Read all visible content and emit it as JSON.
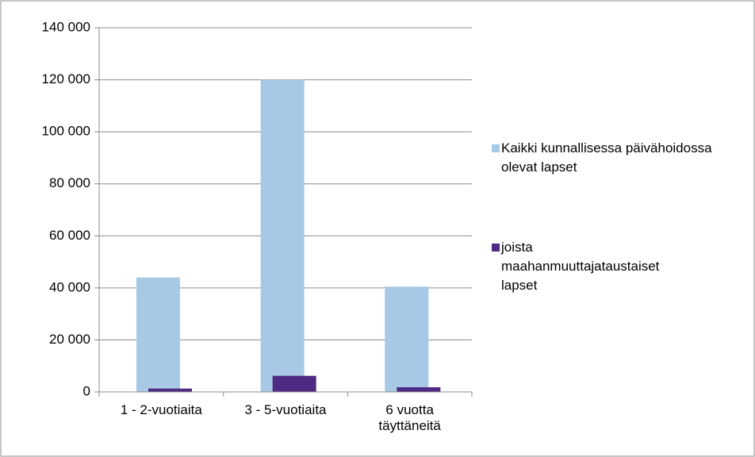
{
  "chart_data": {
    "type": "bar",
    "categories": [
      "1 - 2-vuotiaita",
      "3 - 5-vuotiaita",
      "6 vuotta täyttäneitä"
    ],
    "series": [
      {
        "name": "Kaikki kunnallisessa päivähoidossa olevat lapset",
        "color": "#a7c9e5",
        "values": [
          44000,
          120000,
          40500
        ]
      },
      {
        "name": "joista maahanmuuttajataustaiset lapset",
        "color": "#4e2a84",
        "values": [
          1300,
          6200,
          1800
        ]
      }
    ],
    "ylim": [
      0,
      140000
    ],
    "yticks": [
      0,
      {
        "value": 20000,
        "label": "20 000"
      },
      {
        "value": 40000,
        "label": "40 000"
      },
      {
        "value": 60000,
        "label": "60 000"
      },
      {
        "value": 80000,
        "label": "80 000"
      },
      {
        "value": 100000,
        "label": "100 000"
      },
      {
        "value": 120000,
        "label": "120 000"
      },
      {
        "value": 140000,
        "label": "140 000"
      }
    ],
    "grid": true,
    "legend": "right"
  }
}
